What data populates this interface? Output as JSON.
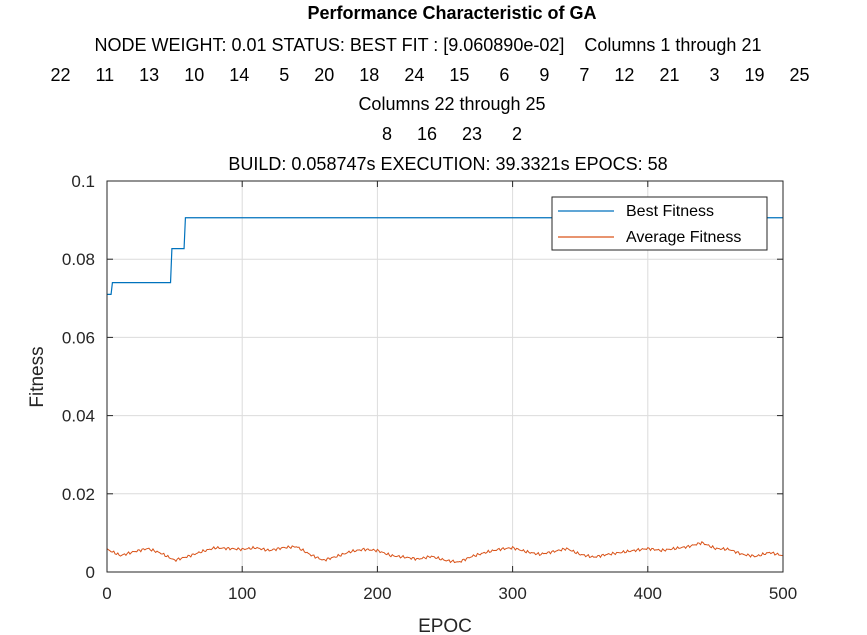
{
  "chart_data": {
    "type": "line",
    "title": "Performance Characteristic of GA",
    "subtitle_lines": [
      "NODE WEIGHT: 0.01 STATUS: BEST FIT : [9.060890e-02]    Columns 1 through 21",
      "22     11     13     10     14      5     20     18     24     15      6      9      7     12     21      3     19     25",
      "Columns 22 through 25",
      "8     16     23      2",
      "BUILD: 0.058747s EXECUTION: 39.3321s EPOCS: 58"
    ],
    "xlabel": "EPOC",
    "ylabel": "Fitness",
    "xlim": [
      0,
      500
    ],
    "ylim": [
      0,
      0.1
    ],
    "xticks": [
      0,
      100,
      200,
      300,
      400,
      500
    ],
    "yticks": [
      0,
      0.02,
      0.04,
      0.06,
      0.08,
      0.1
    ],
    "xtick_labels": [
      "0",
      "100",
      "200",
      "300",
      "400",
      "500"
    ],
    "ytick_labels": [
      "0",
      "0.02",
      "0.04",
      "0.06",
      "0.08",
      "0.1"
    ],
    "grid": true,
    "legend_position": "top-right",
    "series": [
      {
        "name": "Best Fitness",
        "color": "#0072BD",
        "style": "step",
        "points": [
          [
            0,
            0.071
          ],
          [
            3,
            0.071
          ],
          [
            4,
            0.074
          ],
          [
            47,
            0.074
          ],
          [
            48,
            0.0827
          ],
          [
            57,
            0.0827
          ],
          [
            58,
            0.0906
          ],
          [
            500,
            0.0906
          ]
        ]
      },
      {
        "name": "Average Fitness",
        "color": "#D95319",
        "style": "noisy",
        "points": [
          [
            0,
            0.0058
          ],
          [
            10,
            0.0042
          ],
          [
            20,
            0.0052
          ],
          [
            30,
            0.006
          ],
          [
            40,
            0.0048
          ],
          [
            50,
            0.003
          ],
          [
            60,
            0.004
          ],
          [
            70,
            0.0052
          ],
          [
            80,
            0.0062
          ],
          [
            90,
            0.006
          ],
          [
            100,
            0.0058
          ],
          [
            110,
            0.0062
          ],
          [
            120,
            0.0055
          ],
          [
            130,
            0.0062
          ],
          [
            140,
            0.0065
          ],
          [
            150,
            0.0045
          ],
          [
            160,
            0.003
          ],
          [
            170,
            0.004
          ],
          [
            180,
            0.0052
          ],
          [
            190,
            0.0058
          ],
          [
            200,
            0.0055
          ],
          [
            210,
            0.0042
          ],
          [
            220,
            0.0038
          ],
          [
            230,
            0.0033
          ],
          [
            240,
            0.004
          ],
          [
            250,
            0.003
          ],
          [
            260,
            0.0025
          ],
          [
            270,
            0.004
          ],
          [
            280,
            0.005
          ],
          [
            290,
            0.0058
          ],
          [
            300,
            0.0062
          ],
          [
            310,
            0.0052
          ],
          [
            320,
            0.0045
          ],
          [
            330,
            0.0052
          ],
          [
            340,
            0.006
          ],
          [
            350,
            0.0045
          ],
          [
            360,
            0.0038
          ],
          [
            370,
            0.0045
          ],
          [
            380,
            0.005
          ],
          [
            390,
            0.0055
          ],
          [
            400,
            0.006
          ],
          [
            410,
            0.0055
          ],
          [
            420,
            0.006
          ],
          [
            430,
            0.0065
          ],
          [
            440,
            0.0075
          ],
          [
            450,
            0.006
          ],
          [
            460,
            0.0058
          ],
          [
            470,
            0.0045
          ],
          [
            480,
            0.004
          ],
          [
            490,
            0.005
          ],
          [
            500,
            0.0042
          ]
        ]
      }
    ]
  }
}
